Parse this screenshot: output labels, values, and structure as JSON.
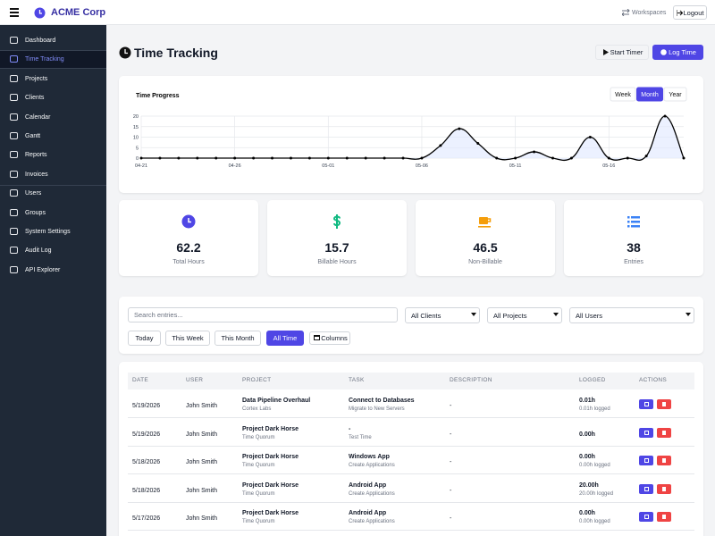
{
  "header": {
    "brand": "ACME Corp",
    "workspaces": "Workspaces",
    "logout": "Logout"
  },
  "sidebar": {
    "groups": [
      [
        "Dashboard",
        "Time Tracking",
        "Projects",
        "Clients",
        "Calendar",
        "Gantt",
        "Reports",
        "Invoices"
      ],
      [
        "Users",
        "Groups",
        "System Settings",
        "Audit Log",
        "API Explorer"
      ]
    ],
    "active": "Time Tracking"
  },
  "page": {
    "title": "Time Tracking",
    "start_timer": "Start Timer",
    "log_time": "Log Time"
  },
  "chart_data": {
    "type": "line",
    "title": "Time Progress",
    "ranges": [
      "Week",
      "Month",
      "Year"
    ],
    "active_range": "Month",
    "color": "#000000",
    "fill": "#e0e7ff",
    "categories": [
      "04-21",
      null,
      null,
      null,
      null,
      "04-26",
      null,
      null,
      null,
      null,
      "05-01",
      null,
      null,
      null,
      null,
      "05-06",
      null,
      null,
      null,
      null,
      "05-11",
      null,
      null,
      null,
      null,
      "05-16",
      null,
      null,
      null,
      null
    ],
    "values": [
      0,
      0,
      0,
      0,
      0,
      0,
      0,
      0,
      0,
      0,
      0,
      0,
      0,
      0,
      0,
      0,
      6,
      14,
      7,
      0,
      0,
      3,
      0,
      0,
      10,
      0,
      0,
      1,
      20,
      0
    ],
    "ylim": [
      0,
      20
    ],
    "yticks": [
      0,
      5,
      10,
      15,
      20
    ],
    "grid": true
  },
  "stats": [
    {
      "value": 62.2,
      "label": "Total Hours"
    },
    {
      "value": 15.7,
      "label": "Billable Hours"
    },
    {
      "value": 46.5,
      "label": "Non-Billable"
    },
    {
      "value": 38,
      "label": "Entries"
    }
  ],
  "filters": {
    "search": "Search entries...",
    "selects": [
      "All Clients",
      "All Projects",
      "All Users"
    ],
    "periods": [
      "Today",
      "This Week",
      "This Month",
      "All Time"
    ],
    "active_period": "All Time",
    "columns": "Columns"
  },
  "table": {
    "headers": [
      "DATE",
      "USER",
      "PROJECT",
      "TASK",
      "DESCRIPTION",
      "LOGGED",
      "ACTIONS"
    ],
    "rows": [
      {
        "date": "5/19/2026",
        "user": "John Smith",
        "project": "Data Pipeline Overhaul",
        "client": "Cortex Labs",
        "task": "Connect to Databases",
        "subtask": "Migrate to New Servers",
        "description": "-",
        "logged": "0.01h",
        "logged_sub": "0.01h logged"
      },
      {
        "date": "5/19/2026",
        "user": "John Smith",
        "project": "Project Dark Horse",
        "client": "Time Quorum",
        "task": "-",
        "subtask": "Test Time",
        "description": "-",
        "logged": "0.00h"
      },
      {
        "date": "5/18/2026",
        "user": "John Smith",
        "project": "Project Dark Horse",
        "client": "Time Quorum",
        "task": "Windows App",
        "subtask": "Create Applications",
        "description": "-",
        "logged": "0.00h",
        "logged_sub": "0.00h logged"
      },
      {
        "date": "5/18/2026",
        "user": "John Smith",
        "project": "Project Dark Horse",
        "client": "Time Quorum",
        "task": "Android App",
        "subtask": "Create Applications",
        "description": "-",
        "logged": "20.00h",
        "logged_sub": "20.00h logged"
      },
      {
        "date": "5/17/2026",
        "user": "John Smith",
        "project": "Project Dark Horse",
        "client": "Time Quorum",
        "task": "Android App",
        "subtask": "Create Applications",
        "description": "-",
        "logged": "0.00h",
        "logged_sub": "0.00h logged"
      }
    ]
  }
}
